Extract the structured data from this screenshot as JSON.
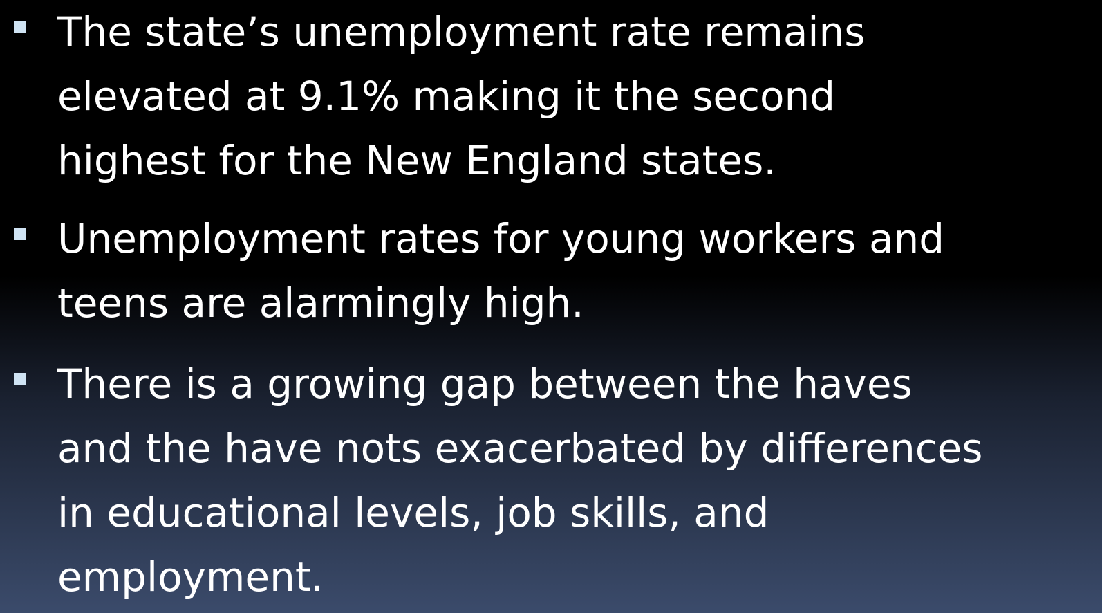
{
  "bullets": [
    [
      "The state’s unemployment rate remains",
      "elevated at 9.1% making it the second",
      "highest for the New England states."
    ],
    [
      "Unemployment rates for young workers and",
      "teens are alarmingly high."
    ],
    [
      "There is a growing gap between the haves",
      "and the have nots exacerbated by differences",
      "in educational levels, job skills, and",
      "employment."
    ]
  ]
}
